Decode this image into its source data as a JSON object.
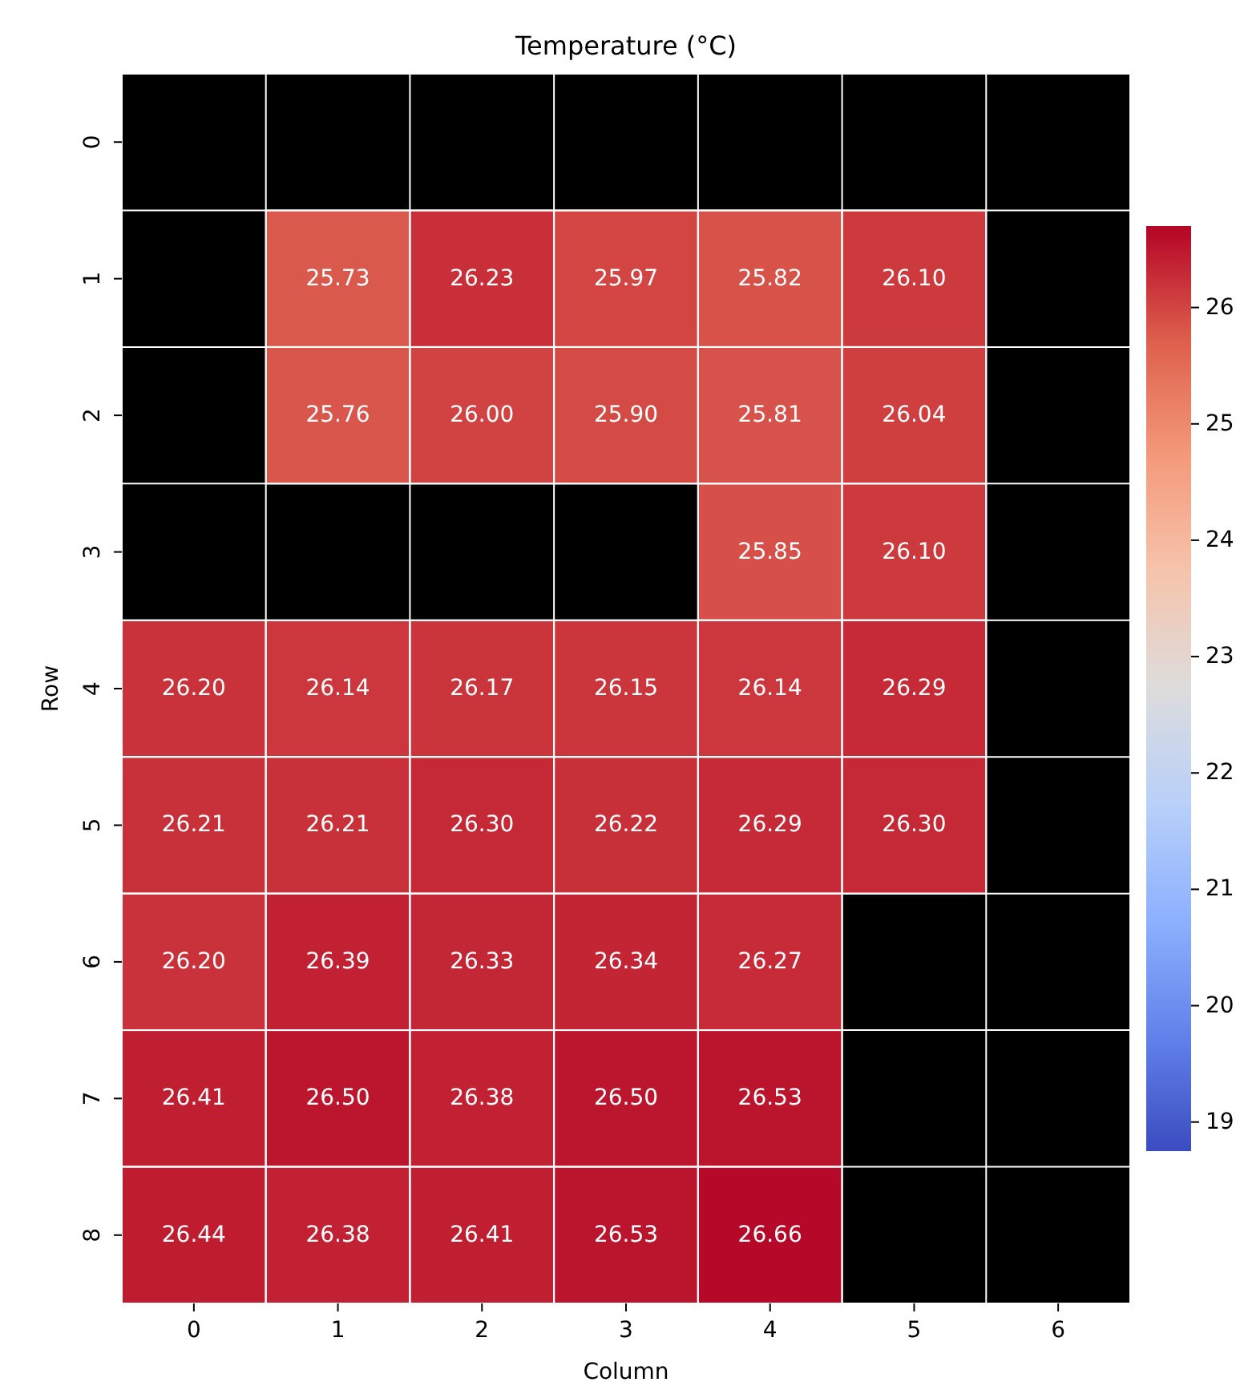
{
  "chart_data": {
    "type": "heatmap",
    "title": "Temperature (°C)",
    "xlabel": "Column",
    "ylabel": "Row",
    "categories": [
      "0",
      "1",
      "2",
      "3",
      "4",
      "5",
      "6"
    ],
    "y_categories": [
      "0",
      "1",
      "2",
      "3",
      "4",
      "5",
      "6",
      "7",
      "8"
    ],
    "cells": [
      [
        null,
        null,
        null,
        null,
        null,
        null,
        null
      ],
      [
        null,
        25.73,
        26.23,
        25.97,
        25.82,
        26.1,
        null
      ],
      [
        null,
        25.76,
        26.0,
        25.9,
        25.81,
        26.04,
        null
      ],
      [
        null,
        null,
        null,
        null,
        25.85,
        26.1,
        null
      ],
      [
        26.2,
        26.14,
        26.17,
        26.15,
        26.14,
        26.29,
        null
      ],
      [
        26.21,
        26.21,
        26.3,
        26.22,
        26.29,
        26.3,
        null
      ],
      [
        26.2,
        26.39,
        26.33,
        26.34,
        26.27,
        null,
        null
      ],
      [
        26.41,
        26.5,
        26.38,
        26.5,
        26.53,
        null,
        null
      ],
      [
        26.44,
        26.38,
        26.41,
        26.53,
        26.66,
        null,
        null
      ]
    ],
    "cell_labels": [
      [
        null,
        null,
        null,
        null,
        null,
        null,
        null
      ],
      [
        null,
        "25.73",
        "26.23",
        "25.97",
        "25.82",
        "26.10",
        null
      ],
      [
        null,
        "25.76",
        "26.00",
        "25.90",
        "25.81",
        "26.04",
        null
      ],
      [
        null,
        null,
        null,
        null,
        "25.85",
        "26.10",
        null
      ],
      [
        "26.20",
        "26.14",
        "26.17",
        "26.15",
        "26.14",
        "26.29",
        null
      ],
      [
        "26.21",
        "26.21",
        "26.30",
        "26.22",
        "26.29",
        "26.30",
        null
      ],
      [
        "26.20",
        "26.39",
        "26.33",
        "26.34",
        "26.27",
        null,
        null
      ],
      [
        "26.41",
        "26.50",
        "26.38",
        "26.50",
        "26.53",
        null,
        null
      ],
      [
        "26.44",
        "26.38",
        "26.41",
        "26.53",
        "26.66",
        null,
        null
      ]
    ],
    "clim": [
      18.75,
      26.7
    ],
    "cticks": [
      19,
      20,
      21,
      22,
      23,
      24,
      25,
      26
    ]
  }
}
